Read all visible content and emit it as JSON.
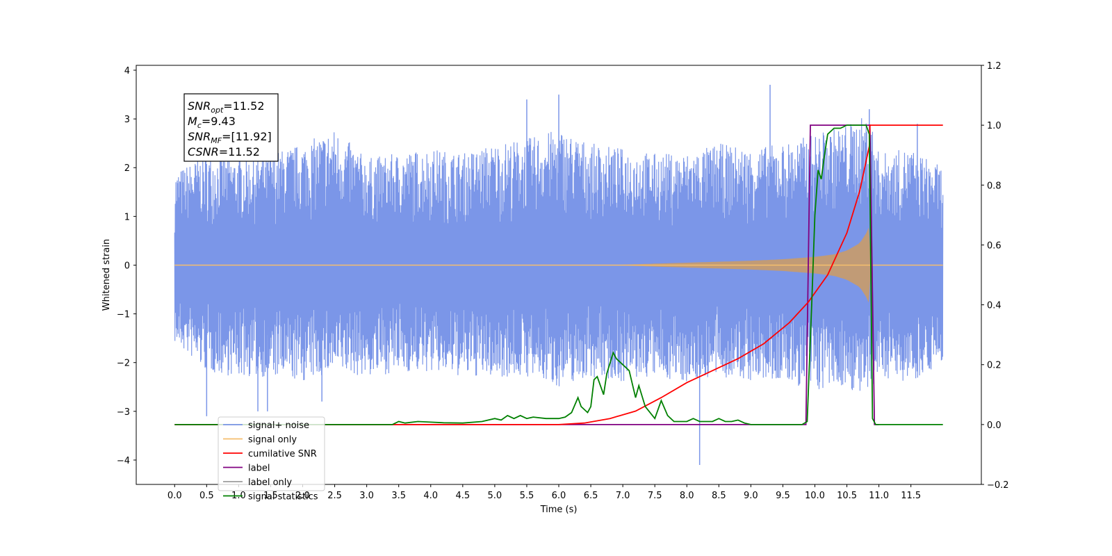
{
  "chart_data": {
    "type": "line",
    "xlabel": "Time (s)",
    "ylabel_left": "Whitened strain",
    "ylabel_right": "",
    "xlim": [
      -0.6,
      12.6
    ],
    "ylim_left": [
      -4.5,
      4.1
    ],
    "ylim_right": [
      -0.2,
      1.2
    ],
    "x_ticks": [
      "0.0",
      "0.5",
      "1.0",
      "1.5",
      "2.0",
      "2.5",
      "3.0",
      "3.5",
      "4.0",
      "4.5",
      "5.0",
      "5.5",
      "6.0",
      "6.5",
      "7.0",
      "7.5",
      "8.0",
      "8.5",
      "9.0",
      "9.5",
      "10.0",
      "10.5",
      "11.0",
      "11.5"
    ],
    "y_ticks_left": [
      "4",
      "3",
      "2",
      "1",
      "0",
      "−1",
      "−2",
      "−3",
      "−4"
    ],
    "y_ticks_right": [
      "1.2",
      "1.0",
      "0.8",
      "0.6",
      "0.4",
      "0.2",
      "0.0",
      "−0.2"
    ],
    "grid": false,
    "legend_placement": "lower-left",
    "annotation": {
      "lines": [
        {
          "main": "SNR",
          "sub": "opt",
          "rest": "=11.52"
        },
        {
          "main": "M",
          "sub": "c",
          "rest": "=9.43"
        },
        {
          "main": "SNR",
          "sub": "MF",
          "rest": "=[11.92]"
        },
        {
          "main": "CSNR",
          "sub": "",
          "rest": "=11.52"
        }
      ]
    },
    "series": [
      {
        "name": "signal+ noise",
        "axis": "left",
        "color": "#7b96e8",
        "x_range": [
          0.0,
          12.0
        ],
        "envelope_upper": [
          [
            0.0,
            1.9
          ],
          [
            0.5,
            2.3
          ],
          [
            1.0,
            2.2
          ],
          [
            1.5,
            2.3
          ],
          [
            2.0,
            2.5
          ],
          [
            2.5,
            2.8
          ],
          [
            3.0,
            2.2
          ],
          [
            3.5,
            2.3
          ],
          [
            4.0,
            2.4
          ],
          [
            4.5,
            2.3
          ],
          [
            5.0,
            2.5
          ],
          [
            5.5,
            2.6
          ],
          [
            6.0,
            2.8
          ],
          [
            6.5,
            2.5
          ],
          [
            7.0,
            2.4
          ],
          [
            7.5,
            2.3
          ],
          [
            8.0,
            2.3
          ],
          [
            8.5,
            2.5
          ],
          [
            9.0,
            2.4
          ],
          [
            9.5,
            2.5
          ],
          [
            10.0,
            2.7
          ],
          [
            10.5,
            2.9
          ],
          [
            10.85,
            3.1
          ],
          [
            11.0,
            2.3
          ],
          [
            11.5,
            2.4
          ],
          [
            12.0,
            2.0
          ]
        ],
        "envelope_lower": [
          [
            0.0,
            -1.6
          ],
          [
            0.5,
            -2.2
          ],
          [
            1.0,
            -2.3
          ],
          [
            1.5,
            -2.3
          ],
          [
            2.0,
            -2.4
          ],
          [
            2.5,
            -2.2
          ],
          [
            3.0,
            -2.3
          ],
          [
            3.5,
            -2.2
          ],
          [
            4.0,
            -2.2
          ],
          [
            4.5,
            -2.3
          ],
          [
            5.0,
            -2.3
          ],
          [
            5.5,
            -2.3
          ],
          [
            6.0,
            -2.5
          ],
          [
            6.5,
            -2.3
          ],
          [
            7.0,
            -2.4
          ],
          [
            7.5,
            -2.3
          ],
          [
            8.0,
            -2.4
          ],
          [
            8.5,
            -2.3
          ],
          [
            9.0,
            -2.4
          ],
          [
            9.5,
            -2.4
          ],
          [
            10.0,
            -2.6
          ],
          [
            10.5,
            -2.5
          ],
          [
            10.85,
            -2.8
          ],
          [
            11.0,
            -2.3
          ],
          [
            11.5,
            -2.4
          ],
          [
            12.0,
            -2.0
          ]
        ],
        "spikes": [
          [
            0.5,
            -3.1
          ],
          [
            1.3,
            -3.0
          ],
          [
            1.45,
            -3.0
          ],
          [
            2.3,
            -2.8
          ],
          [
            5.5,
            3.4
          ],
          [
            6.0,
            3.5
          ],
          [
            8.2,
            -4.1
          ],
          [
            9.3,
            3.7
          ],
          [
            10.85,
            3.2
          ],
          [
            11.6,
            2.9
          ]
        ]
      },
      {
        "name": "signal only",
        "axis": "left",
        "color": "#f5be6c",
        "fill_color": "#c19b76",
        "x_range": [
          0.0,
          12.0
        ],
        "envelope": [
          [
            0.0,
            0.0
          ],
          [
            6.8,
            0.0
          ],
          [
            7.5,
            0.03
          ],
          [
            8.0,
            0.05
          ],
          [
            8.5,
            0.07
          ],
          [
            9.0,
            0.09
          ],
          [
            9.5,
            0.12
          ],
          [
            10.0,
            0.17
          ],
          [
            10.3,
            0.22
          ],
          [
            10.5,
            0.3
          ],
          [
            10.7,
            0.45
          ],
          [
            10.8,
            0.65
          ],
          [
            10.85,
            0.8
          ],
          [
            10.87,
            0.0
          ],
          [
            12.0,
            0.0
          ]
        ]
      },
      {
        "name": "cumilative SNR",
        "axis": "right",
        "color": "#ff0000",
        "x": [
          0.0,
          5.0,
          6.0,
          6.4,
          6.8,
          7.2,
          7.6,
          8.0,
          8.4,
          8.8,
          9.2,
          9.6,
          9.9,
          10.2,
          10.5,
          10.7,
          10.85,
          10.86,
          12.0
        ],
        "y": [
          0.0,
          0.0,
          0.0,
          0.005,
          0.02,
          0.045,
          0.09,
          0.14,
          0.18,
          0.22,
          0.27,
          0.34,
          0.41,
          0.5,
          0.64,
          0.78,
          0.93,
          1.0,
          1.0
        ]
      },
      {
        "name": "label",
        "axis": "right",
        "color": "#800080",
        "x": [
          0.0,
          9.86,
          9.93,
          10.86,
          10.93,
          11.0
        ],
        "y": [
          0.0,
          0.0,
          1.0,
          1.0,
          0.0,
          0.0
        ]
      },
      {
        "name": "label only",
        "axis": "right",
        "color": "#9b9b9b",
        "x": [],
        "y": []
      },
      {
        "name": "signal statistics",
        "axis": "right",
        "color": "#008000",
        "x": [
          0.0,
          3.0,
          3.4,
          3.5,
          3.6,
          3.8,
          4.0,
          4.2,
          4.5,
          4.8,
          5.0,
          5.1,
          5.2,
          5.3,
          5.4,
          5.5,
          5.6,
          5.8,
          6.0,
          6.1,
          6.2,
          6.3,
          6.35,
          6.45,
          6.5,
          6.55,
          6.6,
          6.7,
          6.75,
          6.85,
          6.9,
          7.0,
          7.1,
          7.2,
          7.25,
          7.35,
          7.5,
          7.6,
          7.7,
          7.8,
          8.0,
          8.1,
          8.2,
          8.3,
          8.4,
          8.5,
          8.6,
          8.7,
          8.8,
          8.9,
          9.0,
          9.2,
          9.5,
          9.8,
          9.88,
          9.95,
          10.0,
          10.05,
          10.1,
          10.15,
          10.2,
          10.3,
          10.4,
          10.5,
          10.6,
          10.7,
          10.75,
          10.8,
          10.85,
          10.9,
          10.95,
          11.0,
          12.0
        ],
        "y": [
          0.0,
          0.0,
          0.0,
          0.01,
          0.005,
          0.01,
          0.008,
          0.006,
          0.005,
          0.01,
          0.02,
          0.015,
          0.03,
          0.02,
          0.03,
          0.02,
          0.025,
          0.02,
          0.02,
          0.025,
          0.04,
          0.09,
          0.06,
          0.04,
          0.06,
          0.15,
          0.16,
          0.1,
          0.17,
          0.24,
          0.22,
          0.2,
          0.18,
          0.09,
          0.13,
          0.06,
          0.02,
          0.08,
          0.03,
          0.01,
          0.01,
          0.02,
          0.01,
          0.01,
          0.01,
          0.02,
          0.01,
          0.01,
          0.015,
          0.005,
          0.0,
          0.0,
          0.0,
          0.0,
          0.01,
          0.4,
          0.7,
          0.85,
          0.82,
          0.9,
          0.97,
          0.99,
          0.99,
          1.0,
          1.0,
          1.0,
          1.0,
          1.0,
          0.97,
          0.02,
          0.0,
          0.0,
          0.0
        ]
      }
    ]
  }
}
